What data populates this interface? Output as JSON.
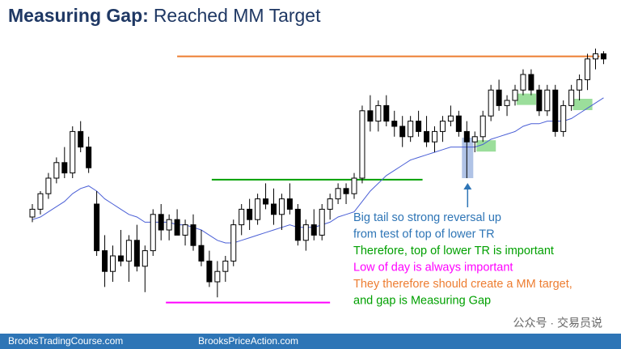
{
  "title_bold": "Measuring Gap:",
  "title_rest": "Reached MM Target",
  "chart_data": {
    "type": "candlestick",
    "open": [
      35,
      38,
      44,
      50,
      56,
      52,
      68,
      62,
      40,
      22,
      14,
      20,
      18,
      26,
      16,
      22,
      36,
      30,
      34,
      28,
      32,
      24,
      18,
      10,
      14,
      18,
      32,
      38,
      34,
      42,
      40,
      36,
      42,
      38,
      26,
      32,
      28,
      38,
      42,
      46,
      44,
      50,
      76,
      72,
      78,
      72,
      70,
      66,
      72,
      68,
      64,
      68,
      72,
      74,
      68,
      64,
      66,
      74,
      84,
      78,
      80,
      84,
      90,
      84,
      76,
      84,
      68,
      78,
      84,
      88,
      96,
      98
    ],
    "high": [
      40,
      45,
      52,
      58,
      62,
      70,
      72,
      66,
      45,
      28,
      24,
      30,
      28,
      32,
      24,
      38,
      40,
      36,
      38,
      34,
      36,
      30,
      22,
      18,
      20,
      34,
      40,
      42,
      44,
      48,
      46,
      44,
      48,
      40,
      34,
      38,
      40,
      44,
      48,
      48,
      52,
      78,
      82,
      80,
      82,
      76,
      74,
      74,
      76,
      74,
      70,
      74,
      78,
      76,
      72,
      68,
      76,
      86,
      88,
      82,
      86,
      92,
      92,
      86,
      86,
      86,
      80,
      86,
      90,
      98,
      100,
      99
    ],
    "low": [
      33,
      36,
      42,
      48,
      50,
      50,
      60,
      52,
      20,
      8,
      10,
      16,
      10,
      14,
      6,
      20,
      26,
      26,
      28,
      24,
      22,
      16,
      8,
      4,
      10,
      16,
      28,
      30,
      32,
      38,
      32,
      30,
      36,
      24,
      22,
      26,
      26,
      34,
      40,
      40,
      42,
      48,
      68,
      68,
      70,
      66,
      62,
      64,
      66,
      62,
      60,
      64,
      70,
      66,
      50,
      60,
      64,
      72,
      76,
      74,
      78,
      82,
      82,
      74,
      74,
      66,
      66,
      76,
      80,
      84,
      92,
      94
    ],
    "close": [
      38,
      44,
      50,
      56,
      52,
      68,
      62,
      54,
      22,
      14,
      20,
      18,
      26,
      16,
      22,
      36,
      30,
      34,
      28,
      32,
      24,
      18,
      10,
      14,
      18,
      32,
      38,
      34,
      42,
      40,
      36,
      42,
      38,
      26,
      32,
      28,
      38,
      42,
      46,
      44,
      50,
      76,
      72,
      78,
      72,
      70,
      66,
      72,
      68,
      64,
      68,
      72,
      74,
      68,
      64,
      66,
      74,
      84,
      78,
      80,
      84,
      90,
      84,
      76,
      84,
      68,
      78,
      84,
      88,
      96,
      98,
      96
    ],
    "ema": [
      34,
      35,
      37,
      39,
      41,
      44,
      46,
      47,
      45,
      42,
      40,
      38,
      36,
      35,
      33,
      33,
      33,
      33,
      32,
      32,
      31,
      30,
      28,
      26,
      25,
      25,
      26,
      27,
      28,
      29,
      30,
      31,
      32,
      31,
      31,
      31,
      32,
      33,
      35,
      36,
      37,
      41,
      45,
      48,
      51,
      53,
      55,
      57,
      58,
      59,
      60,
      61,
      62,
      62,
      62,
      62,
      63,
      65,
      66,
      67,
      68,
      70,
      71,
      71,
      72,
      72,
      72,
      73,
      75,
      77,
      79,
      81
    ],
    "ema_color": "#4a5fd6",
    "ylim": [
      0,
      100
    ],
    "levels": [
      {
        "value": 97,
        "color": "#ed7d31"
      },
      {
        "value": 49.4,
        "color": "#00a000"
      },
      {
        "value": 2,
        "color": "#ff00ff"
      }
    ],
    "annotations": [
      {
        "text": "Big tail so strong reversal up",
        "color": "#2e75b6"
      },
      {
        "text": "from test of top of lower TR",
        "color": "#2e75b6"
      },
      {
        "text": "Therefore, top of lower TR is important",
        "color": "#00a000"
      },
      {
        "text": "Low of day is always important",
        "color": "#ff00ff"
      },
      {
        "text": "They therefore should create a MM target,",
        "color": "#ed7d31"
      },
      {
        "text": "and gap is Measuring Gap",
        "color": "#00a000"
      }
    ]
  },
  "footer_left": "BrooksTradingCourse.com",
  "footer_right": "BrooksPriceAction.com",
  "watermark": "公众号 · 交易员说"
}
